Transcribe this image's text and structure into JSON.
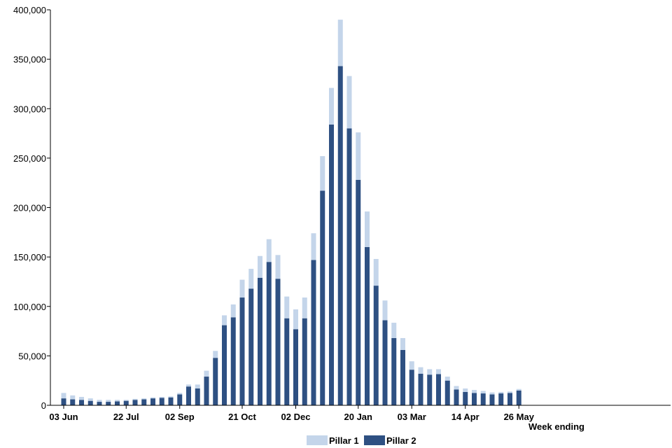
{
  "chart_data": {
    "type": "bar",
    "stacked": true,
    "title": "",
    "xlabel": "Week ending",
    "ylabel": "",
    "ylim": [
      0,
      400000
    ],
    "yticks": [
      0,
      50000,
      100000,
      150000,
      200000,
      250000,
      300000,
      350000,
      400000
    ],
    "ytick_labels": [
      "0",
      "50,000",
      "100,000",
      "150,000",
      "200,000",
      "250,000",
      "300,000",
      "350,000",
      "400,000"
    ],
    "grid": false,
    "legend_position": "bottom-center",
    "x_tick_labels": [
      {
        "index": 0,
        "label": "03 Jun"
      },
      {
        "index": 7,
        "label": "22 Jul"
      },
      {
        "index": 13,
        "label": "02 Sep"
      },
      {
        "index": 20,
        "label": "21 Oct"
      },
      {
        "index": 26,
        "label": "02 Dec"
      },
      {
        "index": 33,
        "label": "20 Jan"
      },
      {
        "index": 39,
        "label": "03 Mar"
      },
      {
        "index": 45,
        "label": "14 Apr"
      },
      {
        "index": 51,
        "label": "26 May"
      }
    ],
    "series": [
      {
        "name": "Pillar 2",
        "color": "#2e5082",
        "values": [
          7000,
          6000,
          5500,
          4500,
          3500,
          3500,
          4000,
          4500,
          5500,
          6000,
          7000,
          7500,
          8000,
          11000,
          19000,
          17000,
          29000,
          48000,
          81000,
          89000,
          109000,
          118000,
          129000,
          145000,
          128000,
          88000,
          77000,
          88000,
          147000,
          217000,
          284000,
          343000,
          280000,
          228000,
          160000,
          121000,
          86000,
          68000,
          56000,
          36000,
          32000,
          31000,
          31500,
          25000,
          16000,
          13500,
          12500,
          12000,
          11000,
          12000,
          12500,
          15000
        ]
      },
      {
        "name": "Pillar 1",
        "color": "#c4d5ea",
        "values": [
          5500,
          4000,
          3000,
          2500,
          2000,
          2000,
          1500,
          1000,
          1000,
          1000,
          1000,
          1000,
          1000,
          1500,
          2000,
          4000,
          6000,
          7000,
          10000,
          13000,
          18000,
          20000,
          22000,
          23000,
          24000,
          22000,
          20000,
          21000,
          27000,
          35000,
          37000,
          47000,
          53000,
          48000,
          36000,
          27000,
          20000,
          15500,
          12000,
          8500,
          6500,
          5500,
          5000,
          4000,
          3500,
          3500,
          3000,
          2500,
          2000,
          1500,
          1500,
          1500
        ]
      }
    ]
  }
}
